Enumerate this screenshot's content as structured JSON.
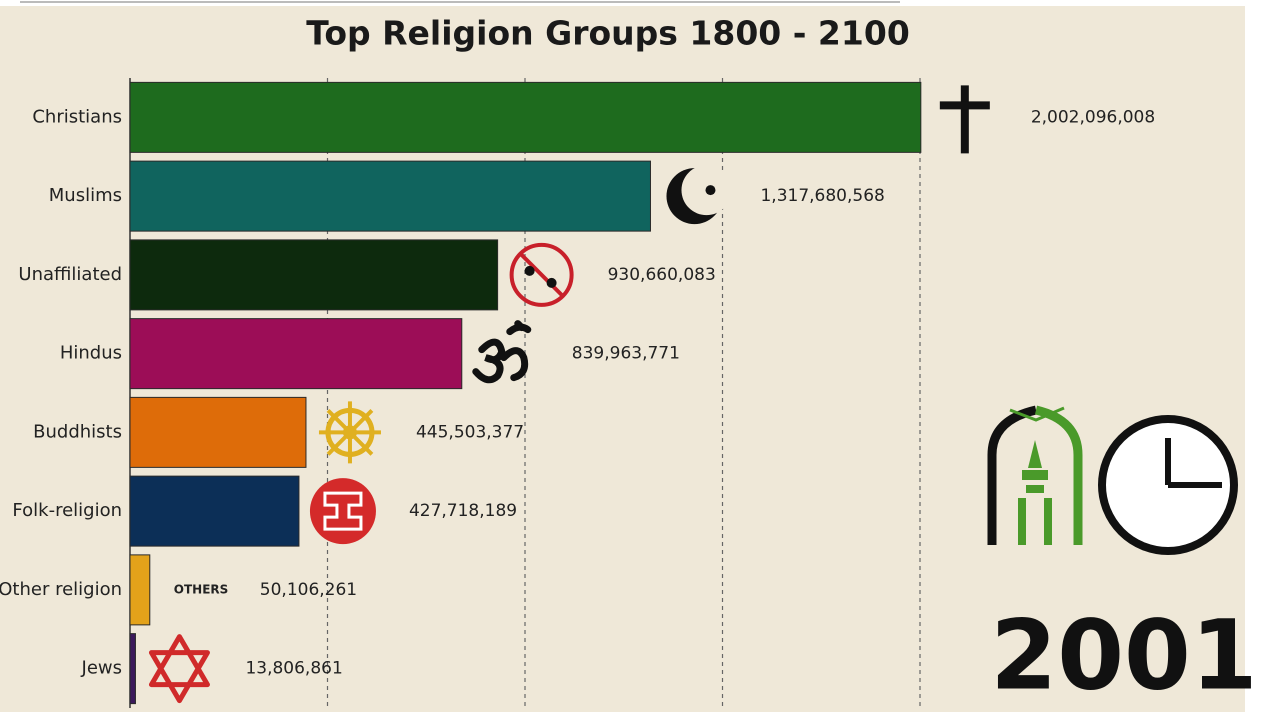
{
  "chart_data": {
    "type": "bar",
    "orientation": "horizontal",
    "title": "Top Religion Groups 1800 - 2100",
    "categories": [
      "Christians",
      "Muslims",
      "Unaffiliated",
      "Hindus",
      "Buddhists",
      "Folk-religion",
      "Other religion",
      "Jews"
    ],
    "values": [
      2002096008,
      1317680568,
      930660083,
      839963771,
      445503377,
      427718189,
      50106261,
      13806861
    ],
    "value_labels": [
      "2,002,096,008",
      "1,317,680,568",
      "930,660,083",
      "839,963,771",
      "445,503,377",
      "427,718,189",
      "50,106,261",
      "13,806,861"
    ],
    "colors": [
      "#1e6b1e",
      "#10645e",
      "#0d2a0d",
      "#9c0d57",
      "#de6c09",
      "#0c2f57",
      "#e3a21a",
      "#3c1a5c"
    ],
    "xlim": [
      0,
      2000000000
    ],
    "xticks": [
      500000000,
      1000000000,
      1500000000,
      2000000000
    ],
    "grid": true,
    "others_icon_label": "OTHERS",
    "year": 2001
  }
}
